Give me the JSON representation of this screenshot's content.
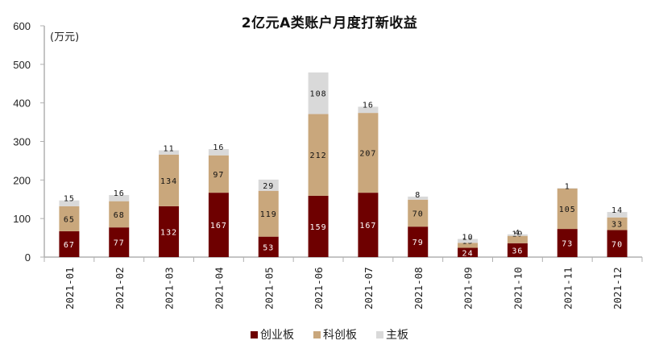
{
  "chart_data": {
    "type": "bar",
    "stacked": true,
    "title": "2亿元A类账户月度打新收益",
    "unit_label": "(万元)",
    "xlabel": "",
    "ylabel": "万元",
    "ylim": [
      0,
      600
    ],
    "yticks": [
      0,
      100,
      200,
      300,
      400,
      500,
      600
    ],
    "grid": false,
    "legend_position": "bottom",
    "categories": [
      "2021-01",
      "2021-02",
      "2021-03",
      "2021-04",
      "2021-05",
      "2021-06",
      "2021-07",
      "2021-08",
      "2021-09",
      "2021-10",
      "2021-11",
      "2021-12"
    ],
    "series": [
      {
        "name": "创业板",
        "color": "#6e0000",
        "label_color": "#ffffff",
        "values": [
          67,
          77,
          132,
          167,
          53,
          159,
          167,
          79,
          24,
          36,
          73,
          70
        ]
      },
      {
        "name": "科创板",
        "color": "#c9a77c",
        "label_color": "#111111",
        "values": [
          65,
          68,
          134,
          97,
          119,
          212,
          207,
          70,
          13,
          19,
          105,
          33
        ]
      },
      {
        "name": "主板",
        "color": "#d9d9d9",
        "label_color": "#111111",
        "values": [
          15,
          16,
          11,
          16,
          29,
          108,
          16,
          8,
          10,
          4,
          1,
          14
        ]
      }
    ]
  }
}
